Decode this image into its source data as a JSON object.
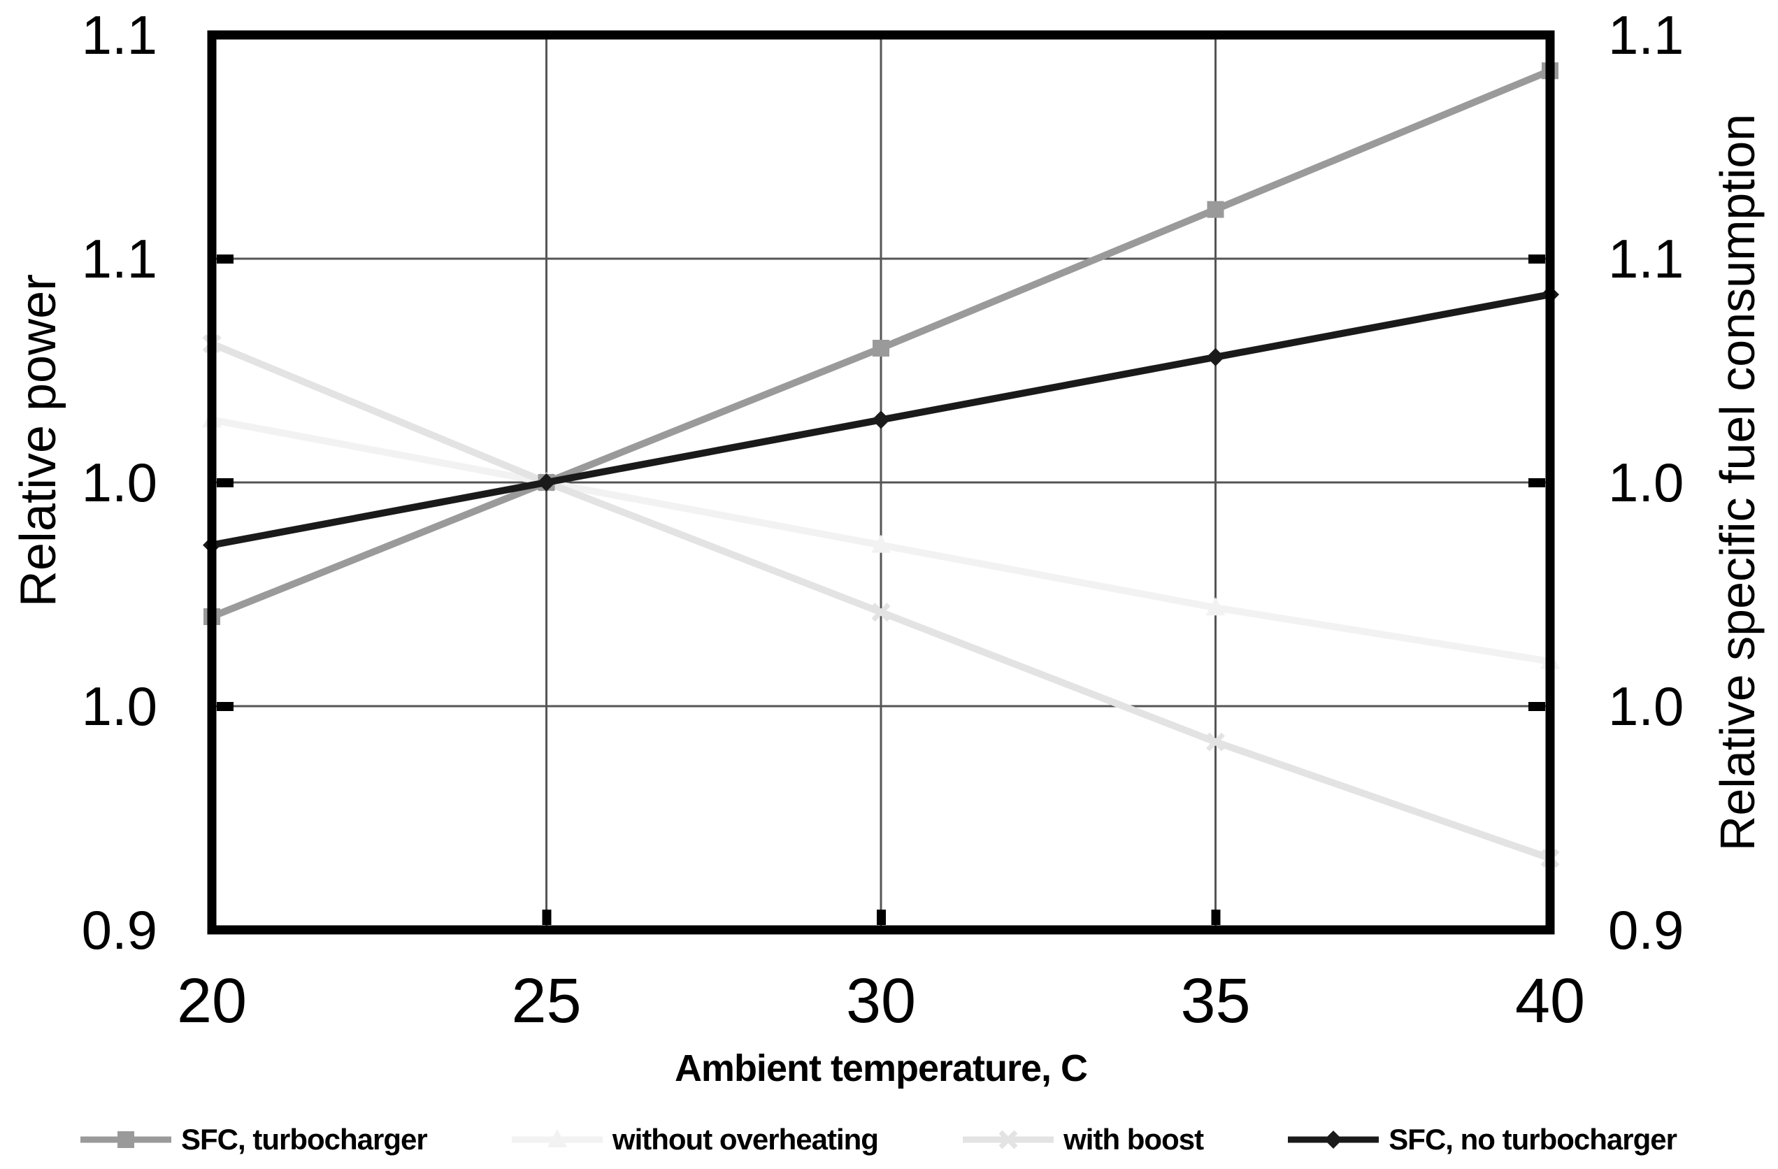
{
  "chart_data": {
    "type": "line",
    "x": [
      20,
      25,
      30,
      35,
      40
    ],
    "x_axis": {
      "label": "Ambient temperature, C",
      "ticks": [
        "20",
        "25",
        "30",
        "35",
        "40"
      ],
      "range": [
        20,
        40
      ],
      "grid_values": [
        25,
        30,
        35
      ]
    },
    "y_axis_left": {
      "label": "Relative power",
      "ticks": [
        "1.1",
        "1.1",
        "1.0",
        "1.0",
        "0.9"
      ],
      "tick_values": [
        1.1,
        1.05,
        1.0,
        0.95,
        0.9
      ],
      "range": [
        0.9,
        1.1
      ],
      "grid_values": [
        1.05,
        1.0,
        0.95
      ]
    },
    "y_axis_right": {
      "label": "Relative specific fuel consumption",
      "ticks": [
        "1.1",
        "1.1",
        "1.0",
        "1.0",
        "0.9"
      ],
      "tick_values": [
        1.1,
        1.05,
        1.0,
        0.95,
        0.9
      ],
      "range": [
        0.9,
        1.1
      ]
    },
    "grid": true,
    "legend_position": "bottom",
    "series": [
      {
        "name": "SFC, turbocharger",
        "color": "#9a9a9a",
        "marker": "square",
        "values": [
          0.97,
          1.0,
          1.03,
          1.061,
          1.092
        ]
      },
      {
        "name": "without overheating",
        "color": "#f2f2f2",
        "marker": "triangle",
        "values": [
          1.014,
          1.0,
          0.986,
          0.972,
          0.96
        ]
      },
      {
        "name": "with boost",
        "color": "#e3e3e3",
        "marker": "x",
        "values": [
          1.031,
          1.0,
          0.971,
          0.942,
          0.916
        ]
      },
      {
        "name": "SFC, no turbocharger",
        "color": "#1a1a1a",
        "marker": "diamond",
        "values": [
          0.986,
          1.0,
          1.014,
          1.028,
          1.042
        ]
      }
    ],
    "draw_order": [
      1,
      2,
      0,
      3
    ],
    "frame_color": "#000000",
    "gridline_color": "#555555"
  }
}
